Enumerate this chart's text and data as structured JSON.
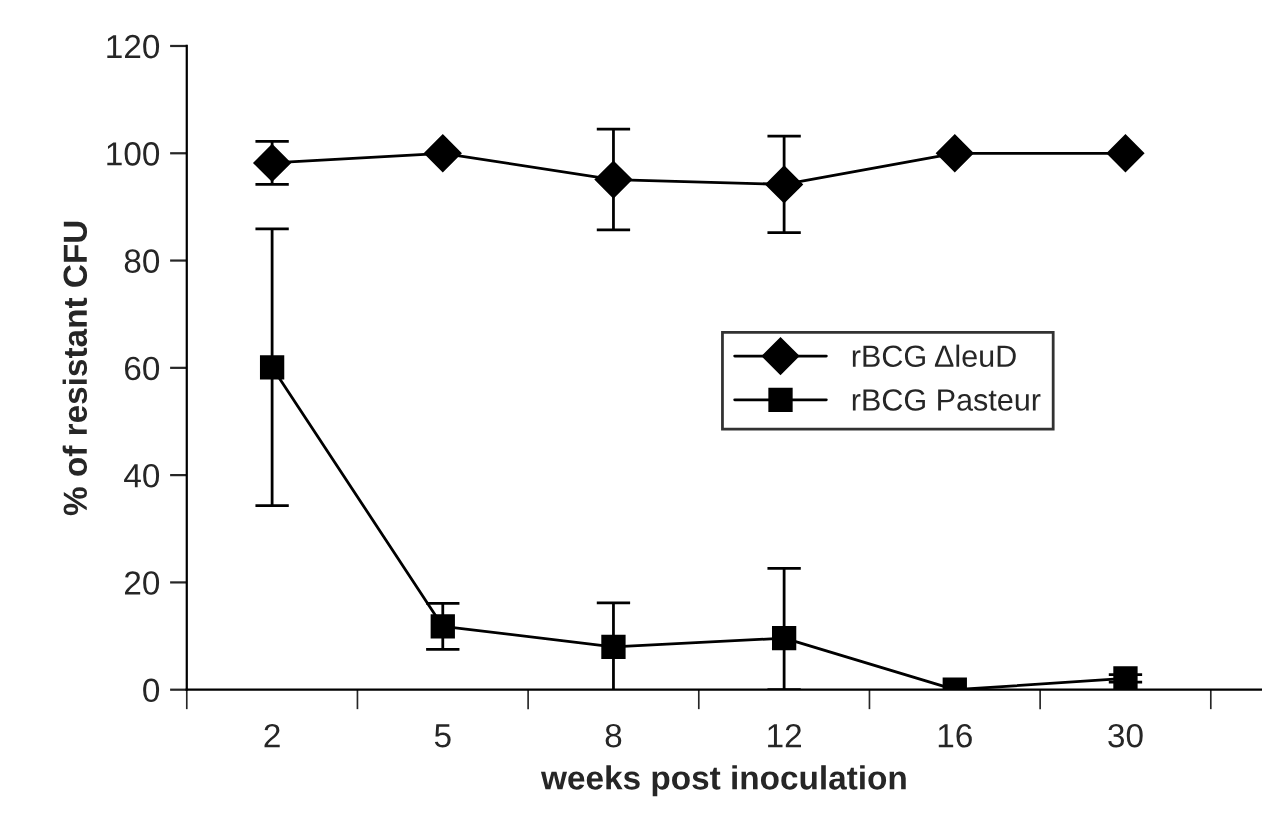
{
  "chart_data": {
    "type": "line",
    "xlabel": "weeks post inoculation",
    "ylabel": "% of resistant CFU",
    "categories": [
      "2",
      "5",
      "8",
      "12",
      "16",
      "30"
    ],
    "series": [
      {
        "name": "rBCG ΔleuD",
        "color": "#000000",
        "marker": "diamond",
        "values": [
          98.2,
          100,
          95.1,
          94.2,
          100,
          100
        ],
        "errors": [
          4,
          null,
          9.4,
          9,
          null,
          null
        ]
      },
      {
        "name": "rBCG Pasteur",
        "color": "#000000",
        "marker": "square",
        "values": [
          60.1,
          11.8,
          8.0,
          9.6,
          0,
          2.1
        ],
        "errors": [
          25.8,
          4.3,
          8.2,
          [
            0,
            22.6
          ],
          null,
          0.7
        ]
      }
    ],
    "ylim": [
      0,
      120
    ],
    "yticks": [
      0,
      20,
      40,
      60,
      80,
      100,
      120
    ],
    "grid": false,
    "legend": "right",
    "line_style": "solid"
  }
}
